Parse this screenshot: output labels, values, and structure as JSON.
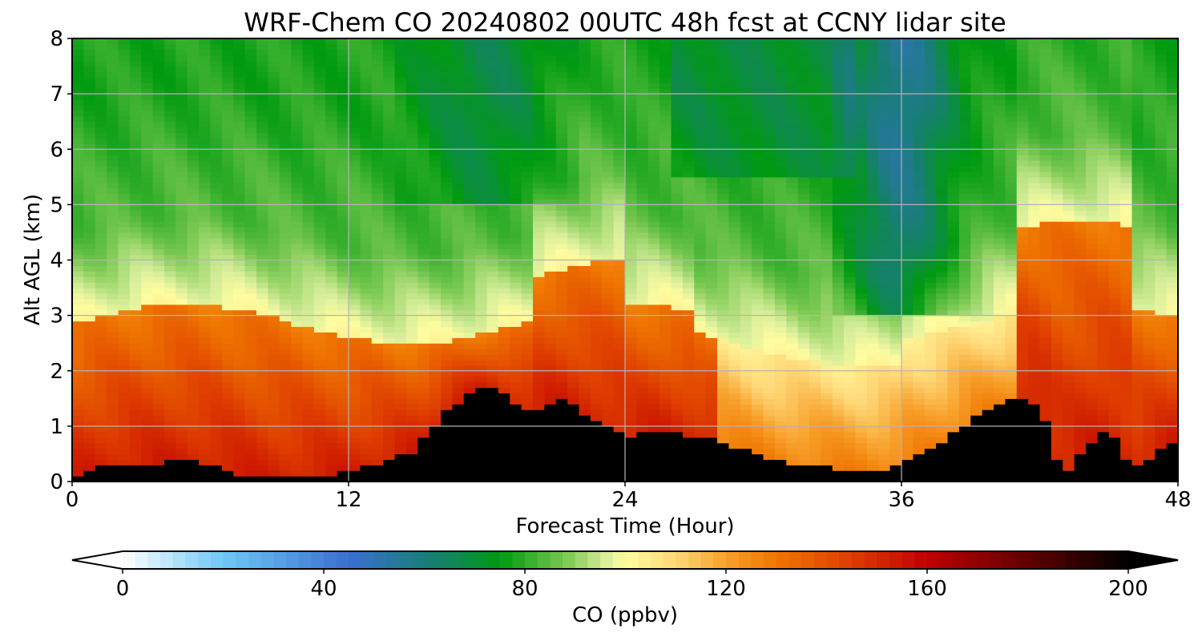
{
  "chart_data": {
    "type": "heatmap",
    "title": "WRF-Chem CO  20240802 00UTC 48h fcst at CCNY lidar site",
    "xlabel": "Forecast Time (Hour)",
    "ylabel": "Alt AGL (km)",
    "xlim": [
      0,
      48
    ],
    "ylim": [
      0,
      8
    ],
    "xticks": [
      0,
      12,
      24,
      36,
      48
    ],
    "yticks": [
      0,
      1,
      2,
      3,
      4,
      5,
      6,
      7,
      8
    ],
    "grid": true,
    "times_hours": [
      0,
      1,
      2,
      3,
      4,
      5,
      6,
      7,
      8,
      9,
      10,
      11,
      12,
      13,
      14,
      15,
      16,
      17,
      18,
      19,
      20,
      21,
      22,
      23,
      24,
      25,
      26,
      27,
      28,
      29,
      30,
      31,
      32,
      33,
      34,
      35,
      36,
      37,
      38,
      39,
      40,
      41,
      42,
      43,
      44,
      45,
      46,
      47,
      48
    ],
    "terrain_top_km": [
      0.05,
      0.25,
      0.3,
      0.28,
      0.35,
      0.4,
      0.3,
      0.15,
      0.05,
      0.05,
      0.08,
      0.1,
      0.18,
      0.3,
      0.4,
      0.6,
      1.2,
      1.5,
      1.8,
      1.5,
      1.2,
      1.5,
      1.3,
      1.0,
      0.8,
      0.9,
      0.9,
      0.8,
      0.75,
      0.6,
      0.45,
      0.35,
      0.3,
      0.25,
      0.2,
      0.2,
      0.3,
      0.5,
      0.8,
      1.1,
      1.3,
      1.5,
      1.4,
      0.1,
      0.6,
      1.0,
      0.2,
      0.5,
      0.8
    ],
    "colorbar": {
      "label": "CO  (ppbv)",
      "min": 0,
      "max": 200,
      "ticks": [
        0,
        40,
        80,
        120,
        160,
        200
      ],
      "extend": "both",
      "stops": [
        {
          "v": 0,
          "color": "#ffffff"
        },
        {
          "v": 20,
          "color": "#6ec8f5"
        },
        {
          "v": 45,
          "color": "#3a6fd0"
        },
        {
          "v": 62,
          "color": "#167f70"
        },
        {
          "v": 75,
          "color": "#009a10"
        },
        {
          "v": 88,
          "color": "#78c850"
        },
        {
          "v": 96,
          "color": "#d8ee9a"
        },
        {
          "v": 100,
          "color": "#fffca0"
        },
        {
          "v": 110,
          "color": "#ffd878"
        },
        {
          "v": 120,
          "color": "#f7a02a"
        },
        {
          "v": 130,
          "color": "#ef7600"
        },
        {
          "v": 145,
          "color": "#de3c00"
        },
        {
          "v": 160,
          "color": "#c00000"
        },
        {
          "v": 180,
          "color": "#600000"
        },
        {
          "v": 200,
          "color": "#000000"
        }
      ]
    }
  }
}
